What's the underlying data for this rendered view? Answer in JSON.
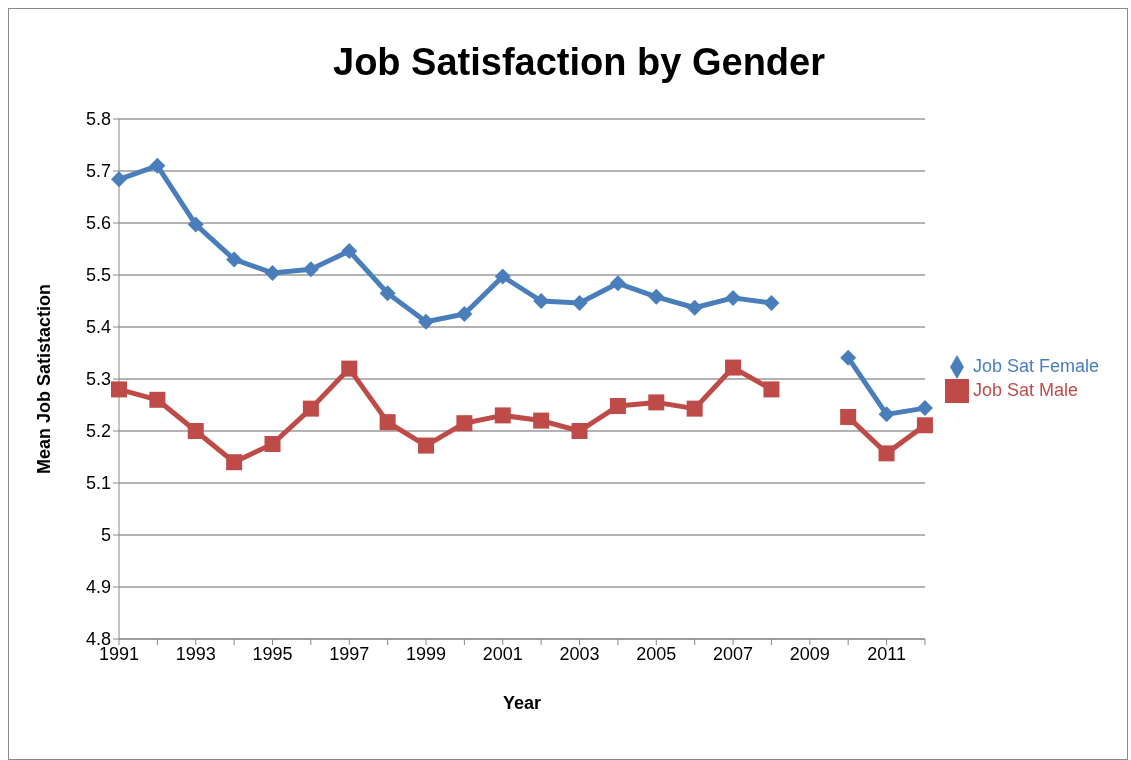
{
  "chart_data": {
    "type": "line",
    "title": "Job Satisfaction by Gender",
    "xlabel": "Year",
    "ylabel": "Mean Job Satistaction",
    "categories": [
      "1991",
      null,
      "1993",
      null,
      "1995",
      null,
      "1997",
      null,
      "1999",
      null,
      "2001",
      null,
      "2003",
      null,
      "2005",
      null,
      "2007",
      null,
      "2009",
      null,
      "2011",
      null
    ],
    "series": [
      {
        "name": "Job Sat Female",
        "color": "#4a7ebb",
        "marker": "diamond",
        "values": [
          5.684,
          5.71,
          5.597,
          5.53,
          5.504,
          5.511,
          5.546,
          5.465,
          5.41,
          5.425,
          5.497,
          5.45,
          5.446,
          5.484,
          5.458,
          5.437,
          5.456,
          5.446,
          null,
          5.341,
          5.232,
          5.244
        ]
      },
      {
        "name": "Job Sat Male",
        "color": "#be4b48",
        "marker": "square",
        "values": [
          5.28,
          5.26,
          5.2,
          5.14,
          5.175,
          5.243,
          5.32,
          5.217,
          5.172,
          5.215,
          5.23,
          5.22,
          5.2,
          5.248,
          5.255,
          5.243,
          5.322,
          5.28,
          null,
          5.227,
          5.157,
          5.211
        ]
      }
    ],
    "ylim": [
      4.8,
      5.8
    ],
    "yticks": [
      4.8,
      4.9,
      5,
      5.1,
      5.2,
      5.3,
      5.4,
      5.5,
      5.6,
      5.7,
      5.8
    ],
    "grid": "y",
    "legend": "right",
    "line_style": "solid"
  }
}
